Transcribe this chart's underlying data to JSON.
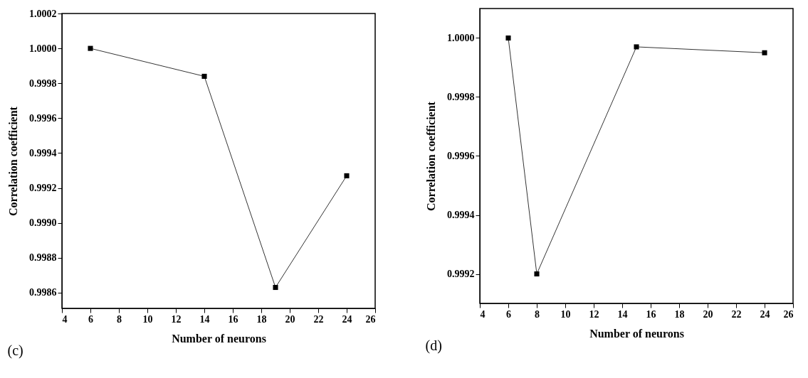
{
  "chart_data": [
    {
      "type": "line",
      "xlabel": "Number of neurons",
      "ylabel": "Correlation coefficient",
      "x": [
        6,
        14,
        19,
        24
      ],
      "series": [
        {
          "color": "#000000",
          "values": [
            1.0,
            0.99984,
            0.99863,
            0.99927
          ]
        }
      ],
      "xlim": [
        4,
        26
      ],
      "xticks": [
        4,
        6,
        8,
        10,
        12,
        14,
        16,
        18,
        20,
        22,
        24,
        26
      ],
      "ylim": [
        0.99851,
        1.0002
      ],
      "yticks": [
        {
          "value": 0.9986,
          "label": "0.9986"
        },
        {
          "value": 0.9988,
          "label": "0.9988"
        },
        {
          "value": 0.999,
          "label": "0.9990"
        },
        {
          "value": 0.9992,
          "label": "0.9992"
        },
        {
          "value": 0.9994,
          "label": "0.9994"
        },
        {
          "value": 0.9996,
          "label": "0.9996"
        },
        {
          "value": 0.9998,
          "label": "0.9998"
        },
        {
          "value": 1.0,
          "label": "1.0000"
        },
        {
          "value": 1.0002,
          "label": "1.0002"
        }
      ],
      "marker": "square",
      "grid": false,
      "annotations": [
        "(c)"
      ]
    },
    {
      "type": "line",
      "xlabel": "Number of neurons",
      "ylabel": "Correlation coefficient",
      "x": [
        6,
        8,
        15,
        24
      ],
      "series": [
        {
          "color": "#000000",
          "values": [
            1.0,
            0.9992,
            0.99997,
            0.99995
          ]
        }
      ],
      "xlim": [
        4,
        26
      ],
      "xticks": [
        4,
        6,
        8,
        10,
        12,
        14,
        16,
        18,
        20,
        22,
        24,
        26
      ],
      "ylim": [
        0.9991,
        1.0001
      ],
      "yticks": [
        {
          "value": 0.9992,
          "label": "0.9992"
        },
        {
          "value": 0.9994,
          "label": "0.9994"
        },
        {
          "value": 0.9996,
          "label": "0.9996"
        },
        {
          "value": 0.9998,
          "label": "0.9998"
        },
        {
          "value": 1.0,
          "label": "1.0000"
        }
      ],
      "marker": "square",
      "grid": false,
      "annotations": [
        "(d)"
      ]
    }
  ]
}
